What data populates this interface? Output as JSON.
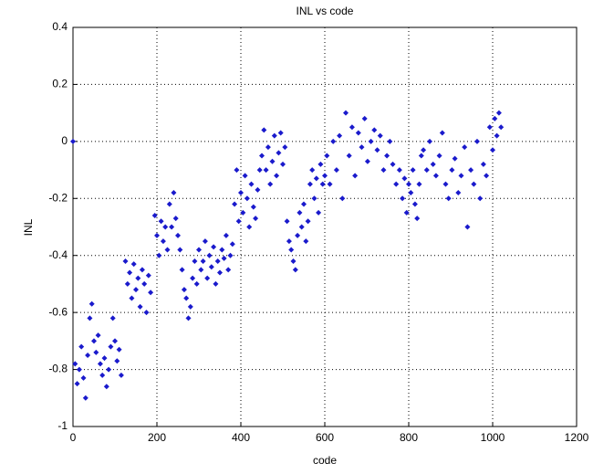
{
  "chart_data": {
    "type": "scatter",
    "title": "INL vs code",
    "xlabel": "code",
    "ylabel": "INL",
    "color": "#1a1acc",
    "grid": true,
    "xlim": [
      0,
      1200
    ],
    "xticks": [
      0,
      200,
      400,
      600,
      800,
      1000,
      1200
    ],
    "ylim": [
      -1,
      0.4
    ],
    "yticks": [
      -1,
      -0.8,
      -0.6,
      -0.4,
      -0.2,
      0,
      0.2,
      0.4
    ],
    "x": [
      0,
      5,
      10,
      15,
      20,
      25,
      30,
      35,
      40,
      45,
      50,
      55,
      60,
      65,
      70,
      75,
      80,
      85,
      90,
      95,
      100,
      105,
      110,
      115,
      125,
      130,
      135,
      140,
      145,
      150,
      155,
      160,
      165,
      170,
      175,
      180,
      185,
      195,
      200,
      205,
      210,
      215,
      220,
      225,
      230,
      235,
      240,
      245,
      250,
      255,
      260,
      265,
      270,
      275,
      280,
      285,
      290,
      295,
      300,
      305,
      310,
      315,
      320,
      325,
      330,
      335,
      340,
      345,
      350,
      355,
      360,
      365,
      370,
      375,
      380,
      385,
      390,
      395,
      400,
      405,
      410,
      415,
      420,
      425,
      430,
      435,
      440,
      445,
      450,
      455,
      460,
      465,
      470,
      475,
      480,
      485,
      490,
      495,
      500,
      505,
      510,
      515,
      520,
      525,
      530,
      535,
      540,
      545,
      550,
      555,
      560,
      565,
      570,
      575,
      580,
      585,
      590,
      595,
      600,
      605,
      612,
      620,
      628,
      635,
      642,
      650,
      658,
      665,
      672,
      680,
      688,
      695,
      702,
      710,
      718,
      725,
      732,
      740,
      748,
      755,
      762,
      770,
      778,
      785,
      790,
      795,
      800,
      805,
      810,
      815,
      820,
      825,
      830,
      835,
      843,
      850,
      858,
      865,
      873,
      880,
      888,
      895,
      903,
      910,
      918,
      925,
      933,
      940,
      948,
      955,
      963,
      970,
      978,
      985,
      993,
      1000,
      1005,
      1010,
      1015,
      1020
    ],
    "y": [
      0,
      -0.78,
      -0.85,
      -0.8,
      -0.72,
      -0.83,
      -0.9,
      -0.75,
      -0.62,
      -0.57,
      -0.7,
      -0.74,
      -0.68,
      -0.78,
      -0.82,
      -0.76,
      -0.86,
      -0.8,
      -0.72,
      -0.62,
      -0.7,
      -0.77,
      -0.73,
      -0.82,
      -0.42,
      -0.5,
      -0.46,
      -0.55,
      -0.43,
      -0.52,
      -0.48,
      -0.58,
      -0.45,
      -0.5,
      -0.6,
      -0.47,
      -0.53,
      -0.26,
      -0.33,
      -0.4,
      -0.28,
      -0.35,
      -0.3,
      -0.38,
      -0.22,
      -0.3,
      -0.18,
      -0.27,
      -0.33,
      -0.38,
      -0.45,
      -0.52,
      -0.55,
      -0.62,
      -0.58,
      -0.48,
      -0.42,
      -0.5,
      -0.38,
      -0.45,
      -0.42,
      -0.35,
      -0.48,
      -0.4,
      -0.44,
      -0.37,
      -0.5,
      -0.42,
      -0.46,
      -0.38,
      -0.41,
      -0.33,
      -0.45,
      -0.4,
      -0.36,
      -0.22,
      -0.1,
      -0.28,
      -0.18,
      -0.25,
      -0.12,
      -0.2,
      -0.3,
      -0.15,
      -0.23,
      -0.27,
      -0.17,
      -0.1,
      -0.05,
      0.04,
      -0.1,
      -0.02,
      -0.15,
      -0.07,
      0.02,
      -0.12,
      -0.04,
      0.03,
      -0.08,
      -0.02,
      -0.28,
      -0.35,
      -0.38,
      -0.42,
      -0.45,
      -0.33,
      -0.25,
      -0.3,
      -0.22,
      -0.35,
      -0.28,
      -0.15,
      -0.1,
      -0.2,
      -0.13,
      -0.25,
      -0.08,
      -0.15,
      -0.12,
      -0.05,
      -0.15,
      0.0,
      -0.1,
      0.02,
      -0.2,
      0.1,
      -0.05,
      0.05,
      -0.12,
      0.03,
      -0.02,
      0.08,
      -0.07,
      0.0,
      0.04,
      -0.03,
      0.02,
      -0.1,
      -0.05,
      0.0,
      -0.08,
      -0.15,
      -0.1,
      -0.2,
      -0.13,
      -0.25,
      -0.15,
      -0.18,
      -0.1,
      -0.22,
      -0.27,
      -0.15,
      -0.05,
      -0.03,
      -0.1,
      0.0,
      -0.08,
      -0.12,
      -0.05,
      0.03,
      -0.15,
      -0.2,
      -0.1,
      -0.06,
      -0.18,
      -0.12,
      -0.02,
      -0.3,
      -0.1,
      -0.15,
      0.0,
      -0.2,
      -0.08,
      -0.12,
      0.05,
      -0.03,
      0.08,
      0.02,
      0.1,
      0.05
    ]
  }
}
